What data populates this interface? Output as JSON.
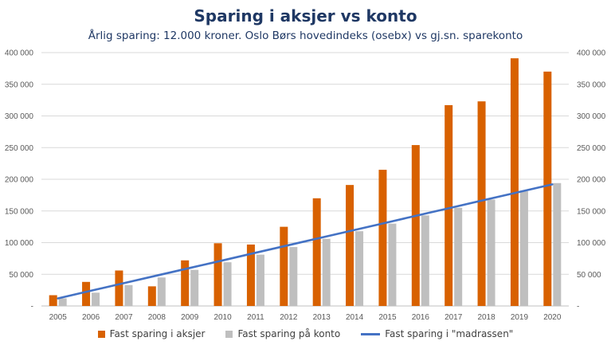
{
  "chart_data": {
    "type": "bar",
    "title": "Sparing i aksjer vs konto",
    "subtitle": "Årlig sparing: 12.000 kroner. Oslo Børs hovedindeks (osebx) vs gj.sn. sparekonto",
    "categories": [
      "2005",
      "2006",
      "2007",
      "2008",
      "2009",
      "2010",
      "2011",
      "2012",
      "2013",
      "2014",
      "2015",
      "2016",
      "2017",
      "2018",
      "2019",
      "2020"
    ],
    "series": [
      {
        "name": "Fast sparing i aksjer",
        "type": "bar",
        "color": "#D86100",
        "values": [
          17000,
          38000,
          56000,
          31000,
          72000,
          99000,
          97000,
          125000,
          170000,
          191000,
          215000,
          254000,
          317000,
          323000,
          391000,
          370000
        ]
      },
      {
        "name": "Fast sparing på konto",
        "type": "bar",
        "color": "#BFBFBF",
        "values": [
          12000,
          21000,
          33000,
          45000,
          57000,
          69000,
          81000,
          93000,
          106000,
          118000,
          130000,
          143000,
          155000,
          168000,
          181000,
          194000
        ]
      },
      {
        "name": "Fast sparing i \"madrassen\"",
        "type": "line",
        "color": "#4472C4",
        "values": [
          12000,
          24000,
          36000,
          48000,
          60000,
          72000,
          84000,
          96000,
          108000,
          120000,
          132000,
          144000,
          156000,
          168000,
          180000,
          192000
        ]
      }
    ],
    "ylim": [
      0,
      400000
    ],
    "yticks": [
      {
        "value": 0,
        "label": "-"
      },
      {
        "value": 50000,
        "label": "50 000"
      },
      {
        "value": 100000,
        "label": "100 000"
      },
      {
        "value": 150000,
        "label": "150 000"
      },
      {
        "value": 200000,
        "label": "200 000"
      },
      {
        "value": 250000,
        "label": "250 000"
      },
      {
        "value": 300000,
        "label": "300 000"
      },
      {
        "value": 350000,
        "label": "350 000"
      },
      {
        "value": 400000,
        "label": "400 000"
      }
    ],
    "secondary_axis": true,
    "grid": true,
    "legend": "bottom"
  }
}
